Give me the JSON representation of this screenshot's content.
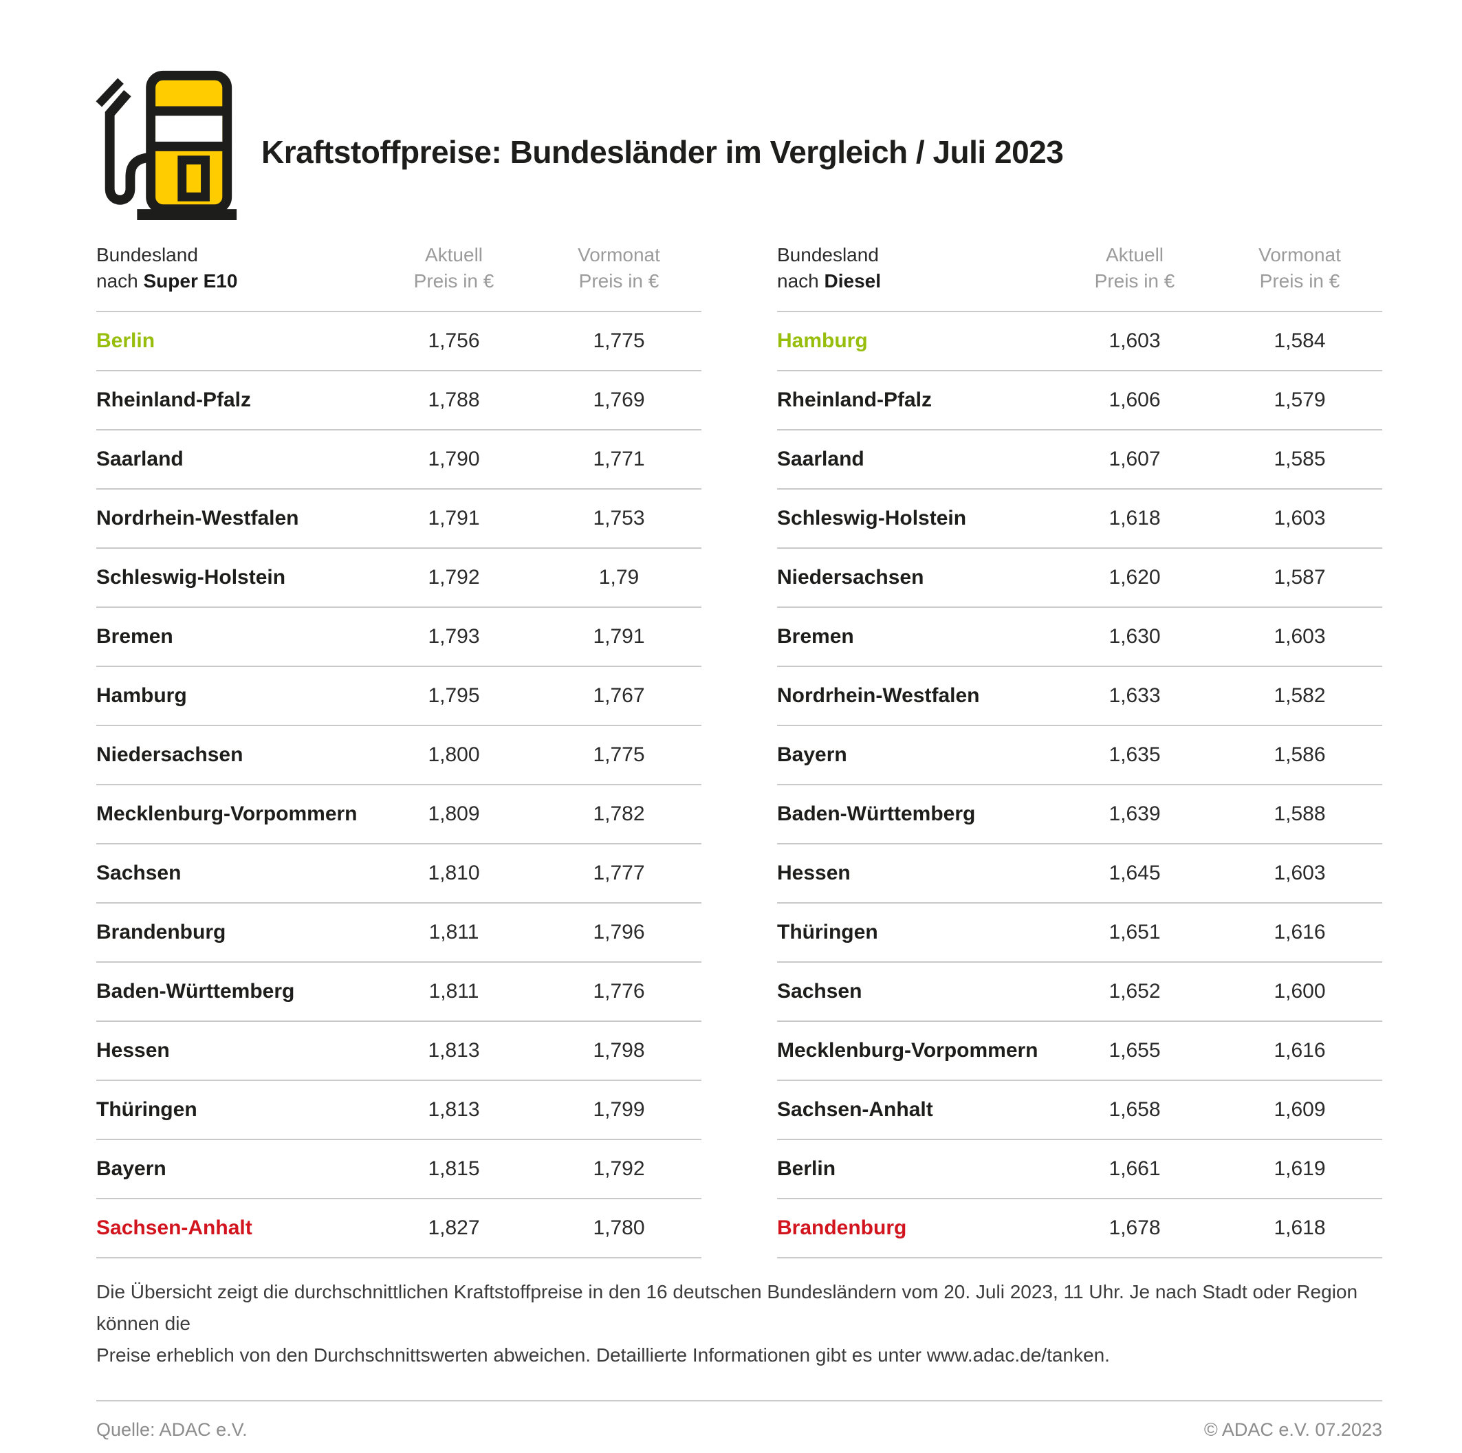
{
  "page": {
    "title": "Kraftstoffpreise: Bundesländer im Vergleich / Juli 2023"
  },
  "colors": {
    "brand_yellow": "#FFCC00",
    "best_green": "#97BE0D",
    "worst_red": "#D2141E",
    "text_dark": "#1A1A1A",
    "header_gray": "#9B9B9B",
    "divider_gray": "#C9C9C9"
  },
  "chart_data": [
    {
      "type": "table",
      "title": "Kraftstoffpreise: Bundesländer im Vergleich / Juli 2023",
      "fuel": "Super E10",
      "columns": {
        "state_line1": "Bundesland",
        "state_line2_prefix": "nach ",
        "current_line1": "Aktuell",
        "current_line2": "Preis in €",
        "previous_line1": "Vormonat",
        "previous_line2": "Preis in €"
      },
      "rows": [
        {
          "name": "Berlin",
          "aktuell": "1,756",
          "vormonat": "1,775",
          "highlight": "best"
        },
        {
          "name": "Rheinland-Pfalz",
          "aktuell": "1,788",
          "vormonat": "1,769"
        },
        {
          "name": "Saarland",
          "aktuell": "1,790",
          "vormonat": "1,771"
        },
        {
          "name": "Nordrhein-Westfalen",
          "aktuell": "1,791",
          "vormonat": "1,753"
        },
        {
          "name": "Schleswig-Holstein",
          "aktuell": "1,792",
          "vormonat": "1,79"
        },
        {
          "name": "Bremen",
          "aktuell": "1,793",
          "vormonat": "1,791"
        },
        {
          "name": "Hamburg",
          "aktuell": "1,795",
          "vormonat": "1,767"
        },
        {
          "name": "Niedersachsen",
          "aktuell": "1,800",
          "vormonat": "1,775"
        },
        {
          "name": "Mecklenburg-Vorpommern",
          "aktuell": "1,809",
          "vormonat": "1,782"
        },
        {
          "name": "Sachsen",
          "aktuell": "1,810",
          "vormonat": "1,777"
        },
        {
          "name": "Brandenburg",
          "aktuell": "1,811",
          "vormonat": "1,796"
        },
        {
          "name": "Baden-Württemberg",
          "aktuell": "1,811",
          "vormonat": "1,776"
        },
        {
          "name": "Hessen",
          "aktuell": "1,813",
          "vormonat": "1,798"
        },
        {
          "name": "Thüringen",
          "aktuell": "1,813",
          "vormonat": "1,799"
        },
        {
          "name": "Bayern",
          "aktuell": "1,815",
          "vormonat": "1,792"
        },
        {
          "name": "Sachsen-Anhalt",
          "aktuell": "1,827",
          "vormonat": "1,780",
          "highlight": "worst"
        }
      ]
    },
    {
      "type": "table",
      "title": "Kraftstoffpreise: Bundesländer im Vergleich / Juli 2023",
      "fuel": "Diesel",
      "columns": {
        "state_line1": "Bundesland",
        "state_line2_prefix": "nach ",
        "current_line1": "Aktuell",
        "current_line2": "Preis in €",
        "previous_line1": "Vormonat",
        "previous_line2": "Preis in €"
      },
      "rows": [
        {
          "name": "Hamburg",
          "aktuell": "1,603",
          "vormonat": "1,584",
          "highlight": "best"
        },
        {
          "name": "Rheinland-Pfalz",
          "aktuell": "1,606",
          "vormonat": "1,579"
        },
        {
          "name": "Saarland",
          "aktuell": "1,607",
          "vormonat": "1,585"
        },
        {
          "name": "Schleswig-Holstein",
          "aktuell": "1,618",
          "vormonat": "1,603"
        },
        {
          "name": "Niedersachsen",
          "aktuell": "1,620",
          "vormonat": "1,587"
        },
        {
          "name": "Bremen",
          "aktuell": "1,630",
          "vormonat": "1,603"
        },
        {
          "name": "Nordrhein-Westfalen",
          "aktuell": "1,633",
          "vormonat": "1,582"
        },
        {
          "name": "Bayern",
          "aktuell": "1,635",
          "vormonat": "1,586"
        },
        {
          "name": "Baden-Württemberg",
          "aktuell": "1,639",
          "vormonat": "1,588"
        },
        {
          "name": "Hessen",
          "aktuell": "1,645",
          "vormonat": "1,603"
        },
        {
          "name": "Thüringen",
          "aktuell": "1,651",
          "vormonat": "1,616"
        },
        {
          "name": "Sachsen",
          "aktuell": "1,652",
          "vormonat": "1,600"
        },
        {
          "name": "Mecklenburg-Vorpommern",
          "aktuell": "1,655",
          "vormonat": "1,616"
        },
        {
          "name": "Sachsen-Anhalt",
          "aktuell": "1,658",
          "vormonat": "1,609"
        },
        {
          "name": "Berlin",
          "aktuell": "1,661",
          "vormonat": "1,619"
        },
        {
          "name": "Brandenburg",
          "aktuell": "1,678",
          "vormonat": "1,618",
          "highlight": "worst"
        }
      ]
    }
  ],
  "footnote": {
    "line1": "Die Übersicht zeigt die durchschnittlichen Kraftstoffpreise in den 16 deutschen Bundesländern vom 20. Juli 2023, 11 Uhr. Je nach Stadt oder Region können die",
    "line2": "Preise erheblich von den Durchschnittswerten abweichen. Detaillierte Informationen gibt es unter www.adac.de/tanken."
  },
  "footer": {
    "source": "Quelle: ADAC e.V.",
    "copyright": "© ADAC e.V. 07.2023"
  }
}
